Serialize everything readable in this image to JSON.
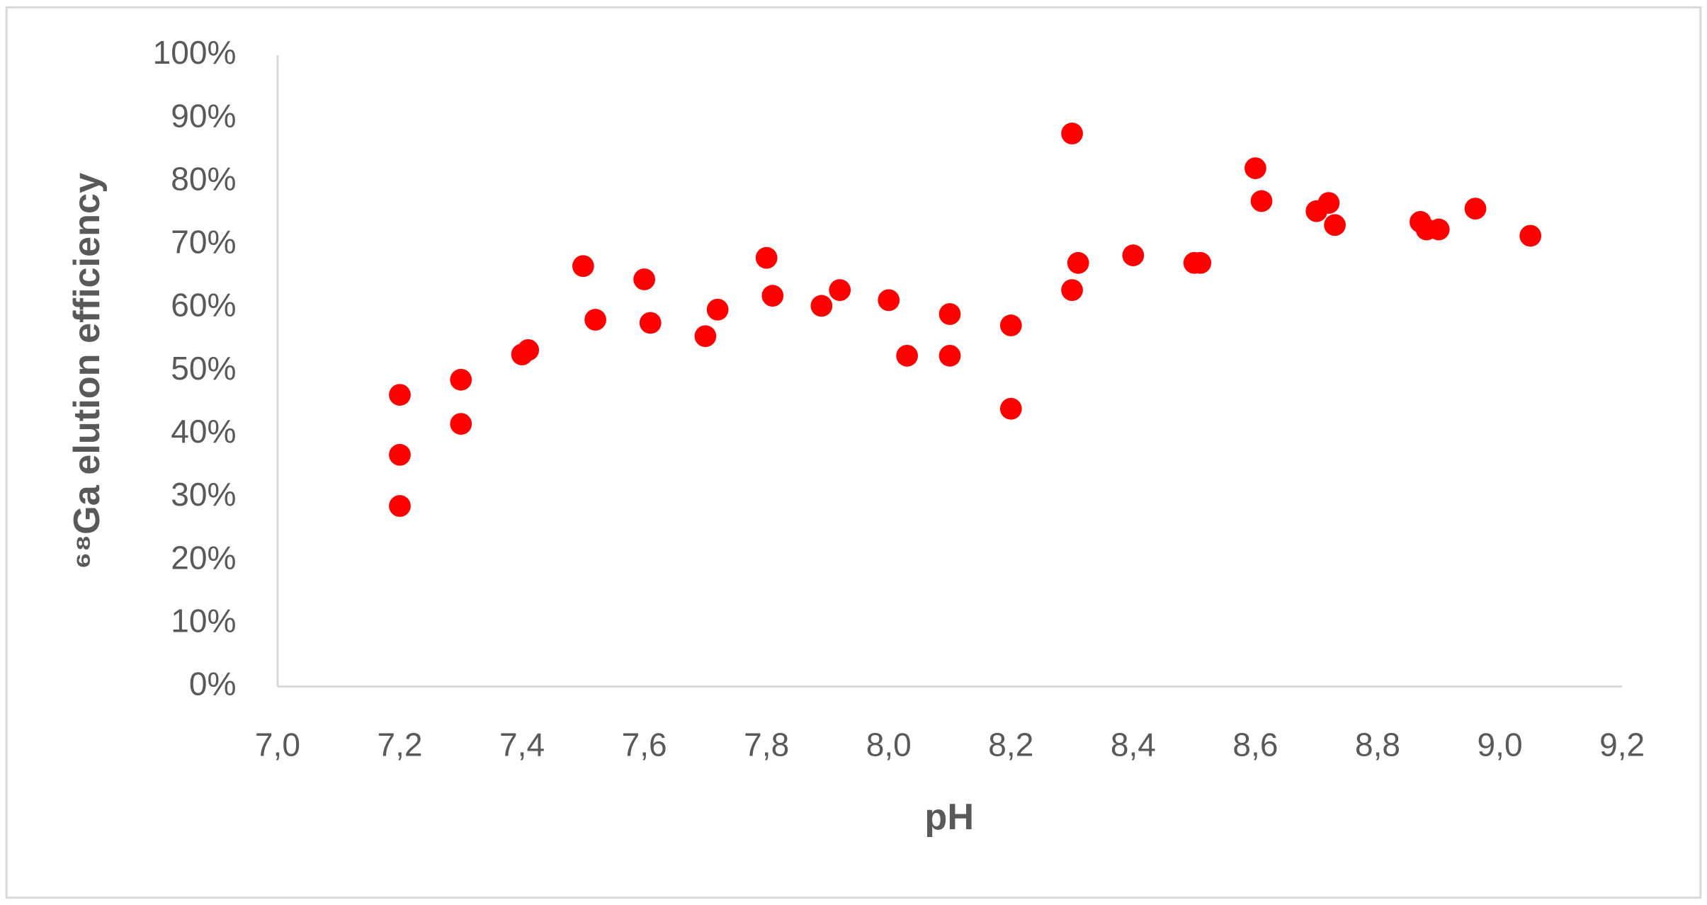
{
  "chart_data": {
    "type": "scatter",
    "x_label": "pH",
    "y_label": "⁶⁸Ga elution efficiency",
    "series": [
      {
        "color": "#ff0000",
        "x": [
          7.2,
          7.2,
          7.2,
          7.3,
          7.3,
          7.4,
          7.41,
          7.5,
          7.52,
          7.6,
          7.61,
          7.7,
          7.72,
          7.8,
          7.81,
          7.89,
          7.92,
          8.0,
          8.03,
          8.1,
          8.1,
          8.2,
          8.2,
          8.3,
          8.3,
          8.31,
          8.4,
          8.5,
          8.51,
          8.6,
          8.61,
          8.7,
          8.72,
          8.73,
          8.87,
          8.88,
          8.9,
          8.96,
          9.05
        ],
        "values": [
          46.2,
          36.7,
          28.6,
          48.6,
          41.6,
          52.6,
          53.3,
          66.6,
          58.1,
          64.5,
          57.6,
          55.5,
          59.7,
          67.9,
          61.9,
          60.3,
          62.8,
          61.2,
          52.4,
          59.0,
          52.4,
          57.2,
          44.0,
          87.6,
          62.8,
          67.1,
          68.3,
          67.1,
          67.1,
          82.1,
          76.9,
          75.3,
          76.6,
          73.1,
          73.6,
          72.4,
          72.4,
          75.7,
          71.4
        ]
      }
    ],
    "xlim": [
      7.0,
      9.2
    ],
    "xticks": [
      {
        "value": 7.0,
        "label": "7,0"
      },
      {
        "value": 7.2,
        "label": "7,2"
      },
      {
        "value": 7.4,
        "label": "7,4"
      },
      {
        "value": 7.6,
        "label": "7,6"
      },
      {
        "value": 7.8,
        "label": "7,8"
      },
      {
        "value": 8.0,
        "label": "8,0"
      },
      {
        "value": 8.2,
        "label": "8,2"
      },
      {
        "value": 8.4,
        "label": "8,4"
      },
      {
        "value": 8.6,
        "label": "8,6"
      },
      {
        "value": 8.8,
        "label": "8,8"
      },
      {
        "value": 9.0,
        "label": "9,0"
      },
      {
        "value": 9.2,
        "label": "9,2"
      }
    ],
    "ylim": [
      0,
      100
    ],
    "yticks": [
      {
        "value": 0,
        "label": "0%"
      },
      {
        "value": 10,
        "label": "10%"
      },
      {
        "value": 20,
        "label": "20%"
      },
      {
        "value": 30,
        "label": "30%"
      },
      {
        "value": 40,
        "label": "40%"
      },
      {
        "value": 50,
        "label": "50%"
      },
      {
        "value": 60,
        "label": "60%"
      },
      {
        "value": 70,
        "label": "70%"
      },
      {
        "value": 80,
        "label": "80%"
      },
      {
        "value": 90,
        "label": "90%"
      },
      {
        "value": 100,
        "label": "100%"
      }
    ],
    "grid": false
  }
}
